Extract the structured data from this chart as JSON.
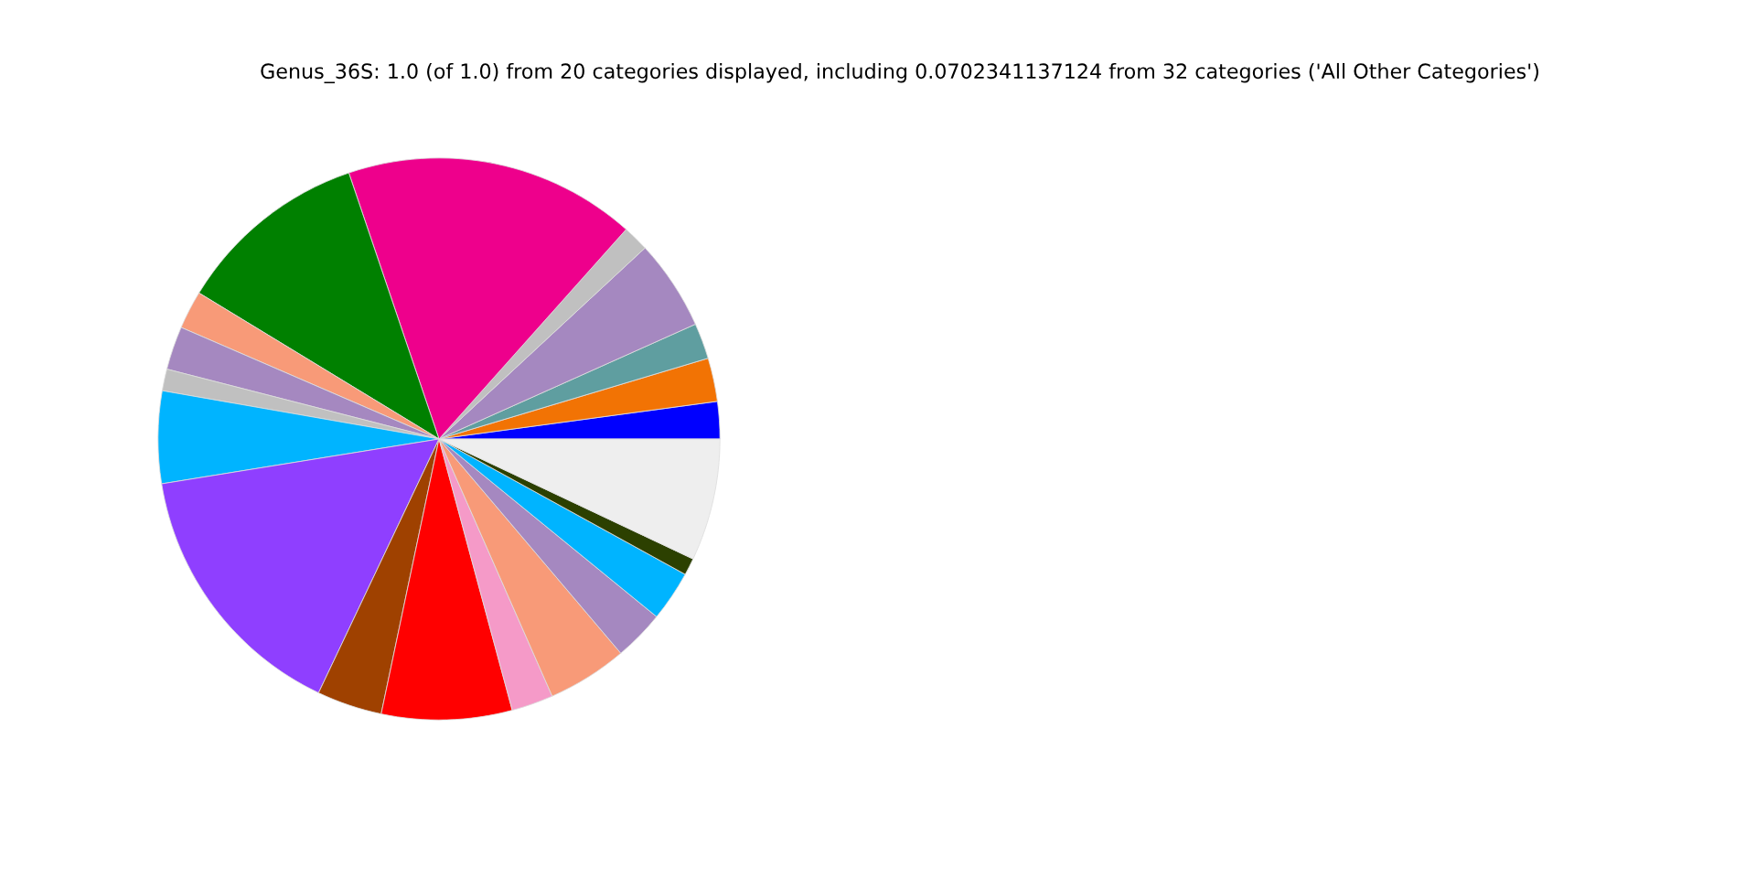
{
  "chart_data": {
    "type": "pie",
    "title": "Genus_36S: 1.0 (of 1.0) from 20 categories displayed, including 0.0702341137124 from 32 categories ('All Other Categories')",
    "categories": [
      null,
      null,
      null,
      null,
      null,
      null,
      null,
      null,
      null,
      null,
      null,
      null,
      null,
      null,
      null,
      null,
      null,
      null,
      null,
      null
    ],
    "values": [
      2.14,
      2.5,
      2.06,
      5.2,
      1.5,
      16.8,
      11.1,
      2.2,
      2.5,
      1.25,
      5.3,
      15.4,
      3.75,
      7.5,
      2.4,
      4.6,
      2.9,
      2.9,
      0.98,
      7.02
    ],
    "colors": [
      "#0000ff",
      "#f27304",
      "#5f9ea0",
      "#a588c0",
      "#c0c0c0",
      "#ee008c",
      "#008000",
      "#f89a78",
      "#a588c0",
      "#c0c0c0",
      "#00b4ff",
      "#8f3fff",
      "#9f4100",
      "#ff0000",
      "#f59ac8",
      "#f89a78",
      "#a588c0",
      "#00b4ff",
      "#2c4000",
      "#eeeeee"
    ],
    "legend": false
  }
}
